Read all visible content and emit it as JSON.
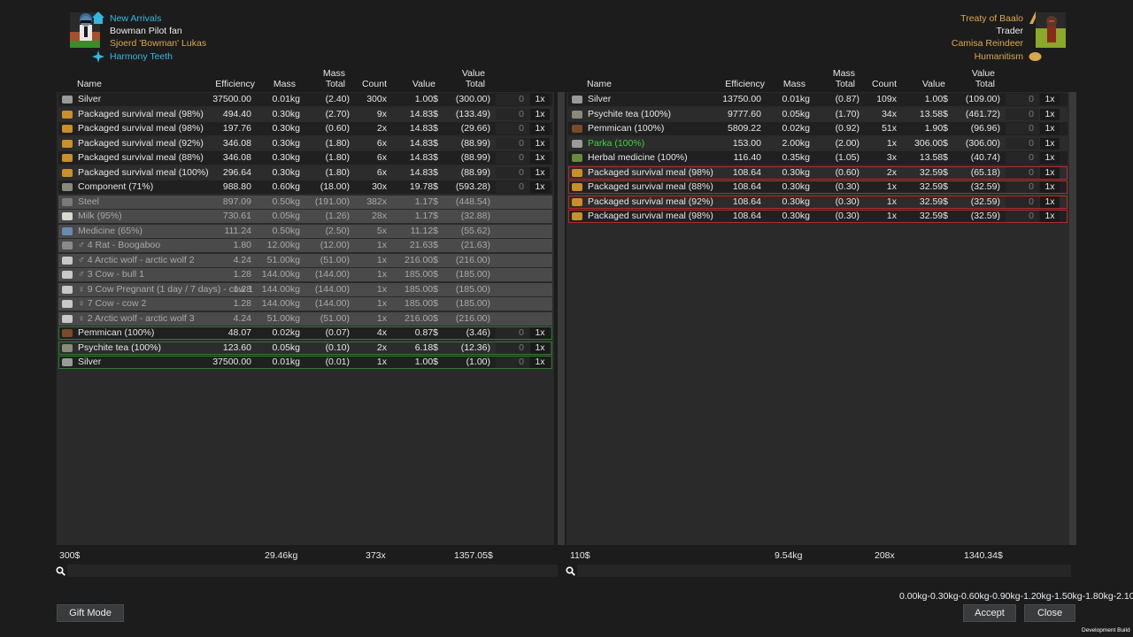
{
  "colony": {
    "faction": "New Arrivals",
    "pawn_title": "Bowman Pilot fan",
    "pawn_name": "Sjoerd 'Bowman' Lukas",
    "ideology": "Harmony Teeth"
  },
  "trader": {
    "faction": "Treaty of Baalo",
    "role": "Trader",
    "name": "Camisa Reindeer",
    "ideology": "Humanitism"
  },
  "columns": {
    "name": "Name",
    "efficiency": "Efficiency",
    "mass": "Mass",
    "mass_total_1": "Mass",
    "mass_total_2": "Total",
    "count": "Count",
    "value": "Value",
    "value_total_1": "Value",
    "value_total_2": "Total"
  },
  "left_rows": [
    {
      "name": "Silver",
      "eff": "37500.00",
      "mass": "0.01kg",
      "mtot": "(2.40)",
      "count": "300x",
      "value": "1.00$",
      "vtot": "(300.00)",
      "qty": "0",
      "mult": "1x",
      "style": "dark",
      "icon": "silver-icon",
      "color": "#9a9a9a"
    },
    {
      "name": "Packaged survival meal (98%)",
      "eff": "494.40",
      "mass": "0.30kg",
      "mtot": "(2.70)",
      "count": "9x",
      "value": "14.83$",
      "vtot": "(133.49)",
      "qty": "0",
      "mult": "1x",
      "style": "mid",
      "icon": "meal-icon",
      "color": "#c98f2a"
    },
    {
      "name": "Packaged survival meal (98%)",
      "eff": "197.76",
      "mass": "0.30kg",
      "mtot": "(0.60)",
      "count": "2x",
      "value": "14.83$",
      "vtot": "(29.66)",
      "qty": "0",
      "mult": "1x",
      "style": "dark",
      "icon": "meal-icon",
      "color": "#c98f2a"
    },
    {
      "name": "Packaged survival meal (92%)",
      "eff": "346.08",
      "mass": "0.30kg",
      "mtot": "(1.80)",
      "count": "6x",
      "value": "14.83$",
      "vtot": "(88.99)",
      "qty": "0",
      "mult": "1x",
      "style": "mid",
      "icon": "meal-icon",
      "color": "#c98f2a"
    },
    {
      "name": "Packaged survival meal (88%)",
      "eff": "346.08",
      "mass": "0.30kg",
      "mtot": "(1.80)",
      "count": "6x",
      "value": "14.83$",
      "vtot": "(88.99)",
      "qty": "0",
      "mult": "1x",
      "style": "dark",
      "icon": "meal-icon",
      "color": "#c98f2a"
    },
    {
      "name": "Packaged survival meal (100%)",
      "eff": "296.64",
      "mass": "0.30kg",
      "mtot": "(1.80)",
      "count": "6x",
      "value": "14.83$",
      "vtot": "(88.99)",
      "qty": "0",
      "mult": "1x",
      "style": "mid",
      "icon": "meal-icon",
      "color": "#c98f2a"
    },
    {
      "name": "Component (71%)",
      "eff": "988.80",
      "mass": "0.60kg",
      "mtot": "(18.00)",
      "count": "30x",
      "value": "19.78$",
      "vtot": "(593.28)",
      "qty": "0",
      "mult": "1x",
      "style": "dark",
      "icon": "component-icon",
      "color": "#8a8a7a"
    },
    {
      "name": "Steel",
      "eff": "897.09",
      "mass": "0.50kg",
      "mtot": "(191.00)",
      "count": "382x",
      "value": "1.17$",
      "vtot": "(448.54)",
      "qty": "",
      "mult": "",
      "style": "grey",
      "icon": "steel-icon",
      "color": "#7a7a7a"
    },
    {
      "name": "Milk (95%)",
      "eff": "730.61",
      "mass": "0.05kg",
      "mtot": "(1.26)",
      "count": "28x",
      "value": "1.17$",
      "vtot": "(32.88)",
      "qty": "",
      "mult": "",
      "style": "grey",
      "icon": "milk-icon",
      "color": "#d8d8d0"
    },
    {
      "name": "Medicine (65%)",
      "eff": "111.24",
      "mass": "0.50kg",
      "mtot": "(2.50)",
      "count": "5x",
      "value": "11.12$",
      "vtot": "(55.62)",
      "qty": "",
      "mult": "",
      "style": "grey",
      "icon": "medicine-icon",
      "color": "#6a8ab0"
    },
    {
      "name": "♂ 4 Rat - Boogaboo",
      "eff": "1.80",
      "mass": "12.00kg",
      "mtot": "(12.00)",
      "count": "1x",
      "value": "21.63$",
      "vtot": "(21.63)",
      "qty": "",
      "mult": "",
      "style": "grey",
      "icon": "rat-icon",
      "color": "#8a8a8a"
    },
    {
      "name": "♂ 4 Arctic wolf - arctic wolf 2",
      "eff": "4.24",
      "mass": "51.00kg",
      "mtot": "(51.00)",
      "count": "1x",
      "value": "216.00$",
      "vtot": "(216.00)",
      "qty": "",
      "mult": "",
      "style": "grey",
      "icon": "wolf-icon",
      "color": "#c8c8c8"
    },
    {
      "name": "♂ 3 Cow - bull 1",
      "eff": "1.28",
      "mass": "144.00kg",
      "mtot": "(144.00)",
      "count": "1x",
      "value": "185.00$",
      "vtot": "(185.00)",
      "qty": "",
      "mult": "",
      "style": "grey",
      "icon": "cow-icon",
      "color": "#c8c8c8"
    },
    {
      "name": "♀ 9 Cow Pregnant (1 day / 7 days) - cow 1",
      "eff": "1.28",
      "mass": "144.00kg",
      "mtot": "(144.00)",
      "count": "1x",
      "value": "185.00$",
      "vtot": "(185.00)",
      "qty": "",
      "mult": "",
      "style": "grey",
      "icon": "cow-icon",
      "color": "#c8c8c8"
    },
    {
      "name": "♀ 7 Cow - cow 2",
      "eff": "1.28",
      "mass": "144.00kg",
      "mtot": "(144.00)",
      "count": "1x",
      "value": "185.00$",
      "vtot": "(185.00)",
      "qty": "",
      "mult": "",
      "style": "grey",
      "icon": "cow-icon",
      "color": "#c8c8c8"
    },
    {
      "name": "♀ 2 Arctic wolf - arctic wolf 3",
      "eff": "4.24",
      "mass": "51.00kg",
      "mtot": "(51.00)",
      "count": "1x",
      "value": "216.00$",
      "vtot": "(216.00)",
      "qty": "",
      "mult": "",
      "style": "grey",
      "icon": "wolf-icon",
      "color": "#c8c8c8"
    },
    {
      "name": "Pemmican (100%)",
      "eff": "48.07",
      "mass": "0.02kg",
      "mtot": "(0.07)",
      "count": "4x",
      "value": "0.87$",
      "vtot": "(3.46)",
      "qty": "0",
      "mult": "1x",
      "style": "dark green",
      "icon": "pemmican-icon",
      "color": "#7a4a2a"
    },
    {
      "name": "Psychite tea (100%)",
      "eff": "123.60",
      "mass": "0.05kg",
      "mtot": "(0.10)",
      "count": "2x",
      "value": "6.18$",
      "vtot": "(12.36)",
      "qty": "0",
      "mult": "1x",
      "style": "mid green",
      "icon": "tea-icon",
      "color": "#8a8a7a"
    },
    {
      "name": "Silver",
      "eff": "37500.00",
      "mass": "0.01kg",
      "mtot": "(0.01)",
      "count": "1x",
      "value": "1.00$",
      "vtot": "(1.00)",
      "qty": "0",
      "mult": "1x",
      "style": "dark green",
      "icon": "silver-icon",
      "color": "#9a9a9a"
    }
  ],
  "right_rows": [
    {
      "name": "Silver",
      "eff": "13750.00",
      "mass": "0.01kg",
      "mtot": "(0.87)",
      "count": "109x",
      "value": "1.00$",
      "vtot": "(109.00)",
      "qty": "0",
      "mult": "1x",
      "style": "dark",
      "icon": "silver-icon",
      "color": "#9a9a9a"
    },
    {
      "name": "Psychite tea (100%)",
      "eff": "9777.60",
      "mass": "0.05kg",
      "mtot": "(1.70)",
      "count": "34x",
      "value": "13.58$",
      "vtot": "(461.72)",
      "qty": "0",
      "mult": "1x",
      "style": "mid",
      "icon": "tea-icon",
      "color": "#8a8a7a"
    },
    {
      "name": "Pemmican (100%)",
      "eff": "5809.22",
      "mass": "0.02kg",
      "mtot": "(0.92)",
      "count": "51x",
      "value": "1.90$",
      "vtot": "(96.96)",
      "qty": "0",
      "mult": "1x",
      "style": "dark",
      "icon": "pemmican-icon",
      "color": "#7a4a2a"
    },
    {
      "name": "Parka (100%)",
      "eff": "153.00",
      "mass": "2.00kg",
      "mtot": "(2.00)",
      "count": "1x",
      "value": "306.00$",
      "vtot": "(306.00)",
      "qty": "0",
      "mult": "1x",
      "style": "mid",
      "icon": "parka-icon",
      "color": "#9a9a9a",
      "name_color": "#3fd23f"
    },
    {
      "name": "Herbal medicine (100%)",
      "eff": "116.40",
      "mass": "0.35kg",
      "mtot": "(1.05)",
      "count": "3x",
      "value": "13.58$",
      "vtot": "(40.74)",
      "qty": "0",
      "mult": "1x",
      "style": "dark",
      "icon": "herbal-icon",
      "color": "#6a8a3a"
    },
    {
      "name": "Packaged survival meal (98%)",
      "eff": "108.64",
      "mass": "0.30kg",
      "mtot": "(0.60)",
      "count": "2x",
      "value": "32.59$",
      "vtot": "(65.18)",
      "qty": "0",
      "mult": "1x",
      "style": "mid red",
      "icon": "meal-icon",
      "color": "#c98f2a"
    },
    {
      "name": "Packaged survival meal (88%)",
      "eff": "108.64",
      "mass": "0.30kg",
      "mtot": "(0.30)",
      "count": "1x",
      "value": "32.59$",
      "vtot": "(32.59)",
      "qty": "0",
      "mult": "1x",
      "style": "dark red",
      "icon": "meal-icon",
      "color": "#c98f2a"
    },
    {
      "name": "Packaged survival meal (92%)",
      "eff": "108.64",
      "mass": "0.30kg",
      "mtot": "(0.30)",
      "count": "1x",
      "value": "32.59$",
      "vtot": "(32.59)",
      "qty": "0",
      "mult": "1x",
      "style": "mid red",
      "icon": "meal-icon",
      "color": "#c98f2a"
    },
    {
      "name": "Packaged survival meal (98%)",
      "eff": "108.64",
      "mass": "0.30kg",
      "mtot": "(0.30)",
      "count": "1x",
      "value": "32.59$",
      "vtot": "(32.59)",
      "qty": "0",
      "mult": "1x",
      "style": "dark red",
      "icon": "meal-icon",
      "color": "#c98f2a"
    }
  ],
  "left_totals": {
    "value": "300$",
    "mass": "29.46kg",
    "count": "373x",
    "vtotal": "1357.05$"
  },
  "right_totals": {
    "value": "110$",
    "mass": "9.54kg",
    "count": "208x",
    "vtotal": "1340.34$"
  },
  "buttons": {
    "gift": "Gift Mode",
    "accept": "Accept",
    "close": "Close"
  },
  "overlay_text": "0.00kg-0.30kg-0.60kg-0.90kg-1.20kg-1.50kg-1.80kg-2.10kg",
  "dev_build": "Development Build",
  "colors": {
    "panel": "#2a2a2b",
    "green_outline": "#2f7a2a",
    "red_outline": "#b52a2a"
  }
}
